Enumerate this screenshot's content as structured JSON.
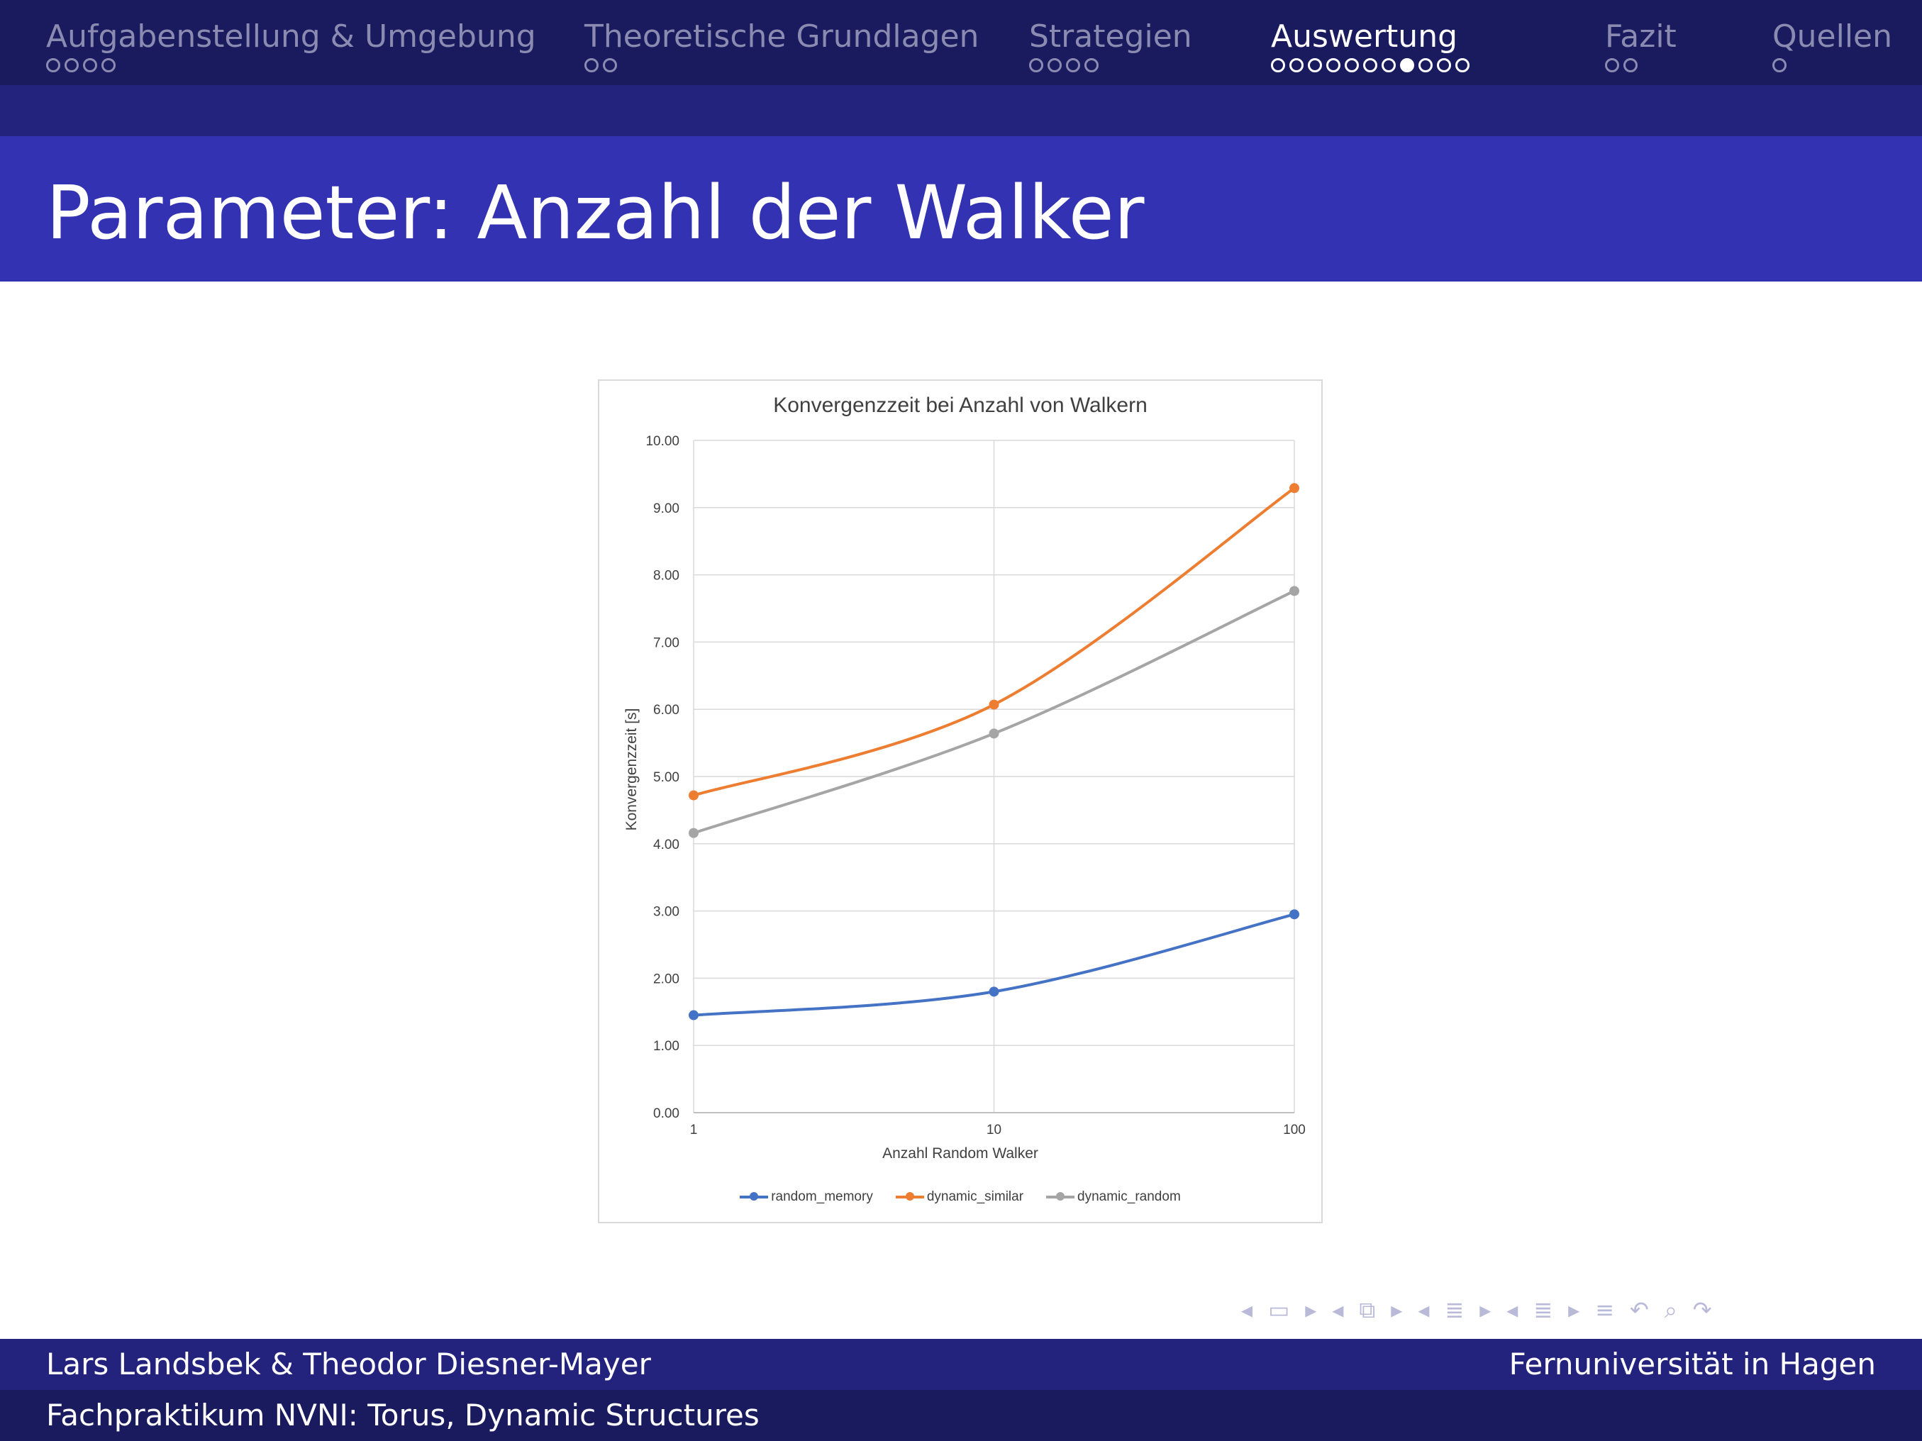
{
  "nav": {
    "sections": [
      {
        "title": "Aufgabenstellung & Umgebung",
        "dots": 4,
        "current": -1,
        "active": false
      },
      {
        "title": "Theoretische Grundlagen",
        "dots": 2,
        "current": -1,
        "active": false
      },
      {
        "title": "Strategien",
        "dots": 4,
        "current": -1,
        "active": false
      },
      {
        "title": "Auswertung",
        "dots": 11,
        "current": 7,
        "active": true
      },
      {
        "title": "Fazit",
        "dots": 2,
        "current": -1,
        "active": false
      },
      {
        "title": "Quellen",
        "dots": 1,
        "current": -1,
        "active": false
      }
    ]
  },
  "frame": {
    "title": "Parameter: Anzahl der Walker"
  },
  "chart_data": {
    "type": "line",
    "title": "Konvergenzzeit bei Anzahl von Walkern",
    "xlabel": "Anzahl Random Walker",
    "ylabel": "Konvergenzzeit [s]",
    "x_scale": "log",
    "x": [
      1,
      10,
      100
    ],
    "x_tick_labels": [
      "1",
      "10",
      "100"
    ],
    "ylim": [
      0,
      10
    ],
    "y_tick_labels": [
      "0.00",
      "1.00",
      "2.00",
      "3.00",
      "4.00",
      "5.00",
      "6.00",
      "7.00",
      "8.00",
      "9.00",
      "10.00"
    ],
    "grid": true,
    "legend_position": "bottom",
    "series": [
      {
        "name": "random_memory",
        "values": [
          1.45,
          1.8,
          2.95
        ],
        "color": "#4472c4"
      },
      {
        "name": "dynamic_similar",
        "values": [
          4.72,
          6.07,
          9.29
        ],
        "color": "#ed7d31"
      },
      {
        "name": "dynamic_random",
        "values": [
          4.16,
          5.64,
          7.76
        ],
        "color": "#a5a5a5"
      }
    ]
  },
  "beamer_nav": {
    "icons": [
      "nav-left-arrow-icon",
      "slide-icon",
      "nav-right-arrow-icon",
      "nav-left-arrow-icon",
      "frame-icon",
      "nav-right-arrow-icon",
      "nav-left-arrow-icon",
      "subsection-icon",
      "nav-right-arrow-icon",
      "nav-left-arrow-icon",
      "section-icon",
      "nav-right-arrow-icon",
      "document-icon",
      "back-icon",
      "search-icon",
      "forward-icon"
    ]
  },
  "footer": {
    "authors": "Lars Landsbek & Theodor Diesner-Mayer",
    "institution": "Fernuniversität in Hagen",
    "course": "Fachpraktikum NVNI: Torus, Dynamic Structures"
  }
}
